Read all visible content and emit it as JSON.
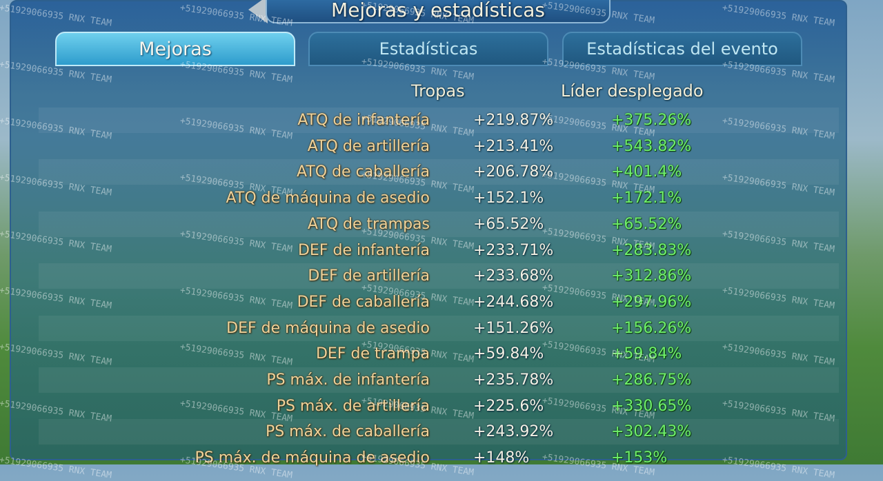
{
  "header": {
    "title": "Mejoras y estadísticas"
  },
  "tabs": [
    "Mejoras",
    "Estadísticas",
    "Estadísticas del evento"
  ],
  "table": {
    "columns": [
      "Tropas",
      "Líder desplegado"
    ],
    "rows": [
      [
        "ATQ de infantería",
        "+219.87%",
        "+375.26%"
      ],
      [
        "ATQ de artillería",
        "+213.41%",
        "+543.82%"
      ],
      [
        "ATQ de caballería",
        "+206.78%",
        "+401.4%"
      ],
      [
        "ATQ de máquina de asedio",
        "+152.1%",
        "+172.1%"
      ],
      [
        "ATQ de trampas",
        "+65.52%",
        "+65.52%"
      ],
      [
        "DEF de infantería",
        "+233.71%",
        "+283.83%"
      ],
      [
        "DEF de artillería",
        "+233.68%",
        "+312.86%"
      ],
      [
        "DEF de caballería",
        "+244.68%",
        "+297.96%"
      ],
      [
        "DEF de máquina de asedio",
        "+151.26%",
        "+156.26%"
      ],
      [
        "DEF de trampa",
        "+59.84%",
        "+59.84%"
      ],
      [
        "PS máx. de infantería",
        "+235.78%",
        "+286.75%"
      ],
      [
        "PS máx. de artillería",
        "+225.6%",
        "+330.65%"
      ],
      [
        "PS máx. de caballería",
        "+243.92%",
        "+302.43%"
      ],
      [
        "PS máx. de máquina de asedio",
        "+148%",
        "+153%"
      ]
    ]
  },
  "watermark": "+51929066935 RNX TEAM"
}
